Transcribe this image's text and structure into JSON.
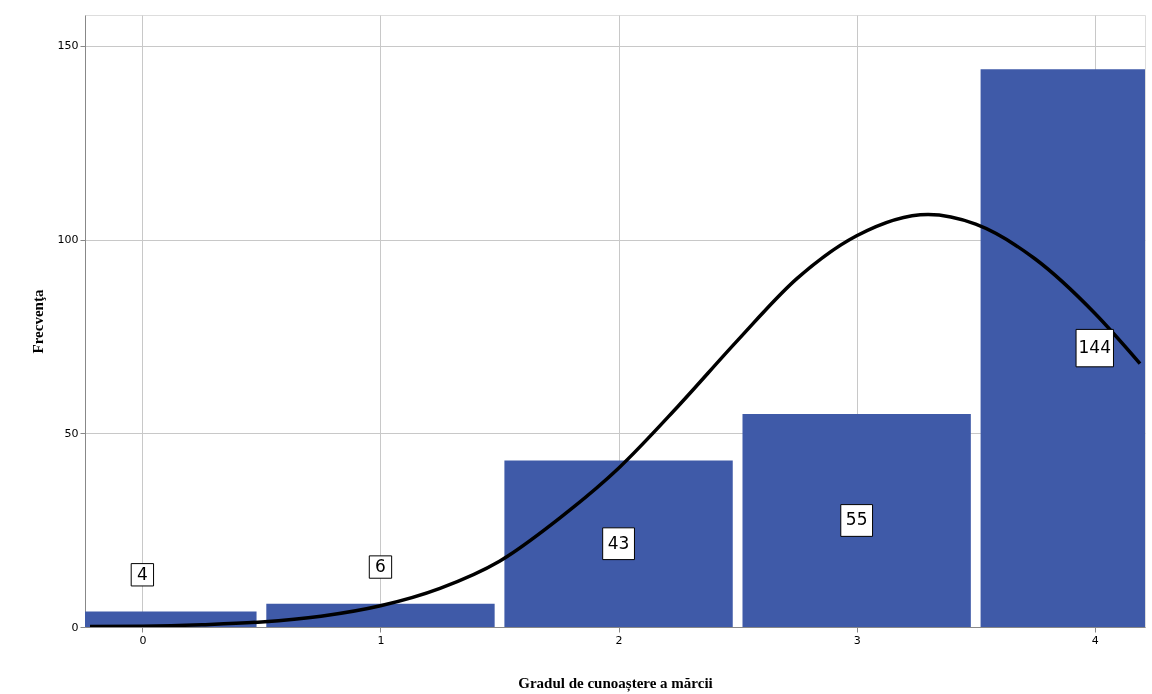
{
  "chart_data": {
    "type": "bar",
    "xlabel": "Gradul de cunoaștere a mărcii",
    "ylabel": "Frecvenţa",
    "x": [
      0,
      1,
      2,
      3,
      4
    ],
    "values": [
      4,
      6,
      43,
      55,
      144
    ],
    "color": "#3f5aa8",
    "value_labels": [
      "4",
      "6",
      "43",
      "55",
      "144"
    ],
    "series": [
      {
        "type": "line",
        "color": "#000000",
        "x": [
          -0.22,
          0,
          0.25,
          0.5,
          0.75,
          1,
          1.25,
          1.5,
          1.75,
          2,
          2.25,
          2.5,
          2.75,
          3,
          3.3,
          3.5,
          3.75,
          4,
          4.19
        ],
        "values": [
          0.1,
          0.2,
          0.6,
          1.3,
          2.8,
          5.5,
          10,
          17,
          28,
          41,
          57,
          74,
          90,
          101,
          106.5,
          104,
          95,
          81,
          68
        ]
      }
    ],
    "xlim": [
      -0.22,
      4.19
    ],
    "ylim": [
      0,
      158
    ],
    "xticks": [
      0,
      1,
      2,
      3,
      4
    ],
    "yticks": [
      0,
      50,
      100,
      150
    ],
    "grid": true
  }
}
